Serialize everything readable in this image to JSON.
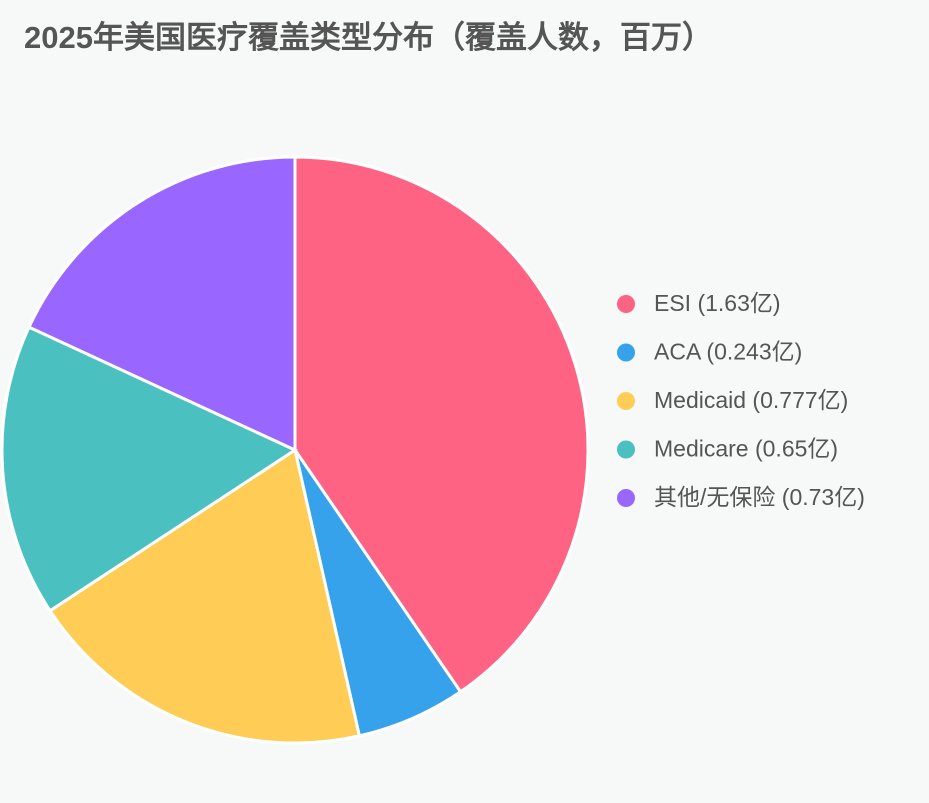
{
  "chart_data": {
    "type": "pie",
    "title": "2025年美国医疗覆盖类型分布（覆盖人数，百万）",
    "categories": [
      "ESI (1.63亿)",
      "ACA (0.243亿)",
      "Medicaid (0.777亿)",
      "Medicare (0.65亿)",
      "其他/无保险 (0.73亿)"
    ],
    "values": [
      163,
      24.3,
      77.7,
      65,
      73
    ],
    "colors": [
      "#ff6384",
      "#36a2eb",
      "#ffcd56",
      "#4bc0c0",
      "#9966ff"
    ],
    "legend": "right"
  }
}
